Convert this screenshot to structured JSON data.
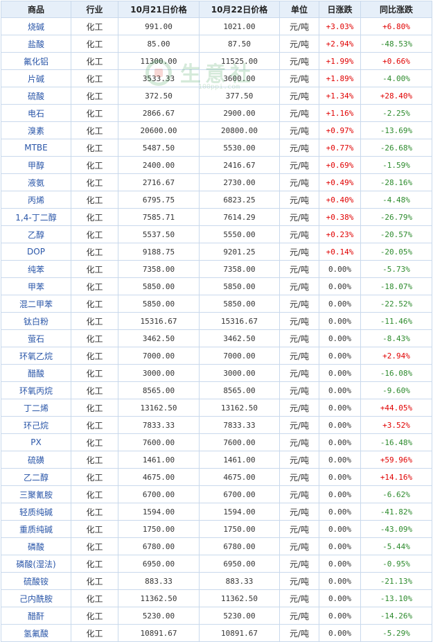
{
  "headers": [
    "商品",
    "行业",
    "10月21日价格",
    "10月22日价格",
    "单位",
    "日涨跌",
    "同比涨跌"
  ],
  "watermark": {
    "text": "生意社",
    "url": "100ppi.com"
  },
  "rows": [
    {
      "name": "烧碱",
      "industry": "化工",
      "p1": "991.00",
      "p2": "1021.00",
      "unit": "元/吨",
      "day": "+3.03%",
      "yoy": "+6.80%"
    },
    {
      "name": "盐酸",
      "industry": "化工",
      "p1": "85.00",
      "p2": "87.50",
      "unit": "元/吨",
      "day": "+2.94%",
      "yoy": "-48.53%"
    },
    {
      "name": "氟化铝",
      "industry": "化工",
      "p1": "11300.00",
      "p2": "11525.00",
      "unit": "元/吨",
      "day": "+1.99%",
      "yoy": "+0.66%"
    },
    {
      "name": "片碱",
      "industry": "化工",
      "p1": "3533.33",
      "p2": "3600.00",
      "unit": "元/吨",
      "day": "+1.89%",
      "yoy": "-4.00%"
    },
    {
      "name": "硫酸",
      "industry": "化工",
      "p1": "372.50",
      "p2": "377.50",
      "unit": "元/吨",
      "day": "+1.34%",
      "yoy": "+28.40%"
    },
    {
      "name": "电石",
      "industry": "化工",
      "p1": "2866.67",
      "p2": "2900.00",
      "unit": "元/吨",
      "day": "+1.16%",
      "yoy": "-2.25%"
    },
    {
      "name": "溴素",
      "industry": "化工",
      "p1": "20600.00",
      "p2": "20800.00",
      "unit": "元/吨",
      "day": "+0.97%",
      "yoy": "-13.69%"
    },
    {
      "name": "MTBE",
      "industry": "化工",
      "p1": "5487.50",
      "p2": "5530.00",
      "unit": "元/吨",
      "day": "+0.77%",
      "yoy": "-26.68%"
    },
    {
      "name": "甲醇",
      "industry": "化工",
      "p1": "2400.00",
      "p2": "2416.67",
      "unit": "元/吨",
      "day": "+0.69%",
      "yoy": "-1.59%"
    },
    {
      "name": "液氨",
      "industry": "化工",
      "p1": "2716.67",
      "p2": "2730.00",
      "unit": "元/吨",
      "day": "+0.49%",
      "yoy": "-28.16%"
    },
    {
      "name": "丙烯",
      "industry": "化工",
      "p1": "6795.75",
      "p2": "6823.25",
      "unit": "元/吨",
      "day": "+0.40%",
      "yoy": "-4.48%"
    },
    {
      "name": "1,4-丁二醇",
      "industry": "化工",
      "p1": "7585.71",
      "p2": "7614.29",
      "unit": "元/吨",
      "day": "+0.38%",
      "yoy": "-26.79%"
    },
    {
      "name": "乙醇",
      "industry": "化工",
      "p1": "5537.50",
      "p2": "5550.00",
      "unit": "元/吨",
      "day": "+0.23%",
      "yoy": "-20.57%"
    },
    {
      "name": "DOP",
      "industry": "化工",
      "p1": "9188.75",
      "p2": "9201.25",
      "unit": "元/吨",
      "day": "+0.14%",
      "yoy": "-20.05%"
    },
    {
      "name": "纯苯",
      "industry": "化工",
      "p1": "7358.00",
      "p2": "7358.00",
      "unit": "元/吨",
      "day": "0.00%",
      "yoy": "-5.73%"
    },
    {
      "name": "甲苯",
      "industry": "化工",
      "p1": "5850.00",
      "p2": "5850.00",
      "unit": "元/吨",
      "day": "0.00%",
      "yoy": "-18.07%"
    },
    {
      "name": "混二甲苯",
      "industry": "化工",
      "p1": "5850.00",
      "p2": "5850.00",
      "unit": "元/吨",
      "day": "0.00%",
      "yoy": "-22.52%"
    },
    {
      "name": "钛白粉",
      "industry": "化工",
      "p1": "15316.67",
      "p2": "15316.67",
      "unit": "元/吨",
      "day": "0.00%",
      "yoy": "-11.46%"
    },
    {
      "name": "萤石",
      "industry": "化工",
      "p1": "3462.50",
      "p2": "3462.50",
      "unit": "元/吨",
      "day": "0.00%",
      "yoy": "-8.43%"
    },
    {
      "name": "环氧乙烷",
      "industry": "化工",
      "p1": "7000.00",
      "p2": "7000.00",
      "unit": "元/吨",
      "day": "0.00%",
      "yoy": "+2.94%"
    },
    {
      "name": "醋酸",
      "industry": "化工",
      "p1": "3000.00",
      "p2": "3000.00",
      "unit": "元/吨",
      "day": "0.00%",
      "yoy": "-16.08%"
    },
    {
      "name": "环氧丙烷",
      "industry": "化工",
      "p1": "8565.00",
      "p2": "8565.00",
      "unit": "元/吨",
      "day": "0.00%",
      "yoy": "-9.60%"
    },
    {
      "name": "丁二烯",
      "industry": "化工",
      "p1": "13162.50",
      "p2": "13162.50",
      "unit": "元/吨",
      "day": "0.00%",
      "yoy": "+44.05%"
    },
    {
      "name": "环己烷",
      "industry": "化工",
      "p1": "7833.33",
      "p2": "7833.33",
      "unit": "元/吨",
      "day": "0.00%",
      "yoy": "+3.52%"
    },
    {
      "name": "PX",
      "industry": "化工",
      "p1": "7600.00",
      "p2": "7600.00",
      "unit": "元/吨",
      "day": "0.00%",
      "yoy": "-16.48%"
    },
    {
      "name": "硫磺",
      "industry": "化工",
      "p1": "1461.00",
      "p2": "1461.00",
      "unit": "元/吨",
      "day": "0.00%",
      "yoy": "+59.96%"
    },
    {
      "name": "乙二醇",
      "industry": "化工",
      "p1": "4675.00",
      "p2": "4675.00",
      "unit": "元/吨",
      "day": "0.00%",
      "yoy": "+14.16%"
    },
    {
      "name": "三聚氰胺",
      "industry": "化工",
      "p1": "6700.00",
      "p2": "6700.00",
      "unit": "元/吨",
      "day": "0.00%",
      "yoy": "-6.62%"
    },
    {
      "name": "轻质纯碱",
      "industry": "化工",
      "p1": "1594.00",
      "p2": "1594.00",
      "unit": "元/吨",
      "day": "0.00%",
      "yoy": "-41.82%"
    },
    {
      "name": "重质纯碱",
      "industry": "化工",
      "p1": "1750.00",
      "p2": "1750.00",
      "unit": "元/吨",
      "day": "0.00%",
      "yoy": "-43.09%"
    },
    {
      "name": "磷酸",
      "industry": "化工",
      "p1": "6780.00",
      "p2": "6780.00",
      "unit": "元/吨",
      "day": "0.00%",
      "yoy": "-5.44%"
    },
    {
      "name": "磷酸(湿法)",
      "industry": "化工",
      "p1": "6950.00",
      "p2": "6950.00",
      "unit": "元/吨",
      "day": "0.00%",
      "yoy": "-0.95%"
    },
    {
      "name": "硫酸铵",
      "industry": "化工",
      "p1": "883.33",
      "p2": "883.33",
      "unit": "元/吨",
      "day": "0.00%",
      "yoy": "-21.13%"
    },
    {
      "name": "己内酰胺",
      "industry": "化工",
      "p1": "11362.50",
      "p2": "11362.50",
      "unit": "元/吨",
      "day": "0.00%",
      "yoy": "-13.10%"
    },
    {
      "name": "醋酐",
      "industry": "化工",
      "p1": "5230.00",
      "p2": "5230.00",
      "unit": "元/吨",
      "day": "0.00%",
      "yoy": "-14.26%"
    },
    {
      "name": "氢氟酸",
      "industry": "化工",
      "p1": "10891.67",
      "p2": "10891.67",
      "unit": "元/吨",
      "day": "0.00%",
      "yoy": "-5.29%"
    }
  ],
  "colors": {
    "up": "#e00000",
    "down": "#2c8a2c",
    "flat": "#333333",
    "name": "#2a56a8",
    "header_bg": "#e6eff9",
    "border": "#c9d9ec"
  }
}
